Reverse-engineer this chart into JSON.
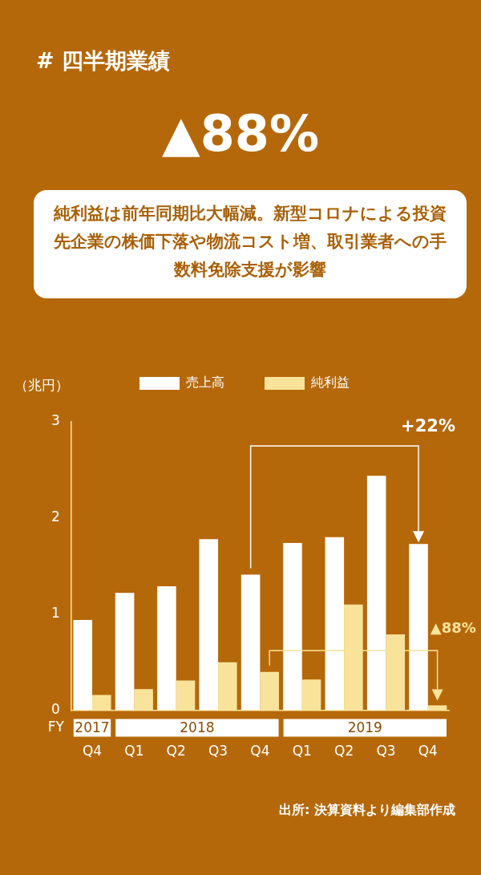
{
  "chart_data": {
    "type": "bar",
    "title": "# 四半期業績",
    "subtitle": "▲88%",
    "ylabel": "（兆円）",
    "categories": [
      "Q4",
      "Q1",
      "Q2",
      "Q3",
      "Q4",
      "Q1",
      "Q2",
      "Q3",
      "Q4"
    ],
    "series": [
      {
        "name": "売上高",
        "color": "#ffffff",
        "values": [
          0.94,
          1.22,
          1.29,
          1.78,
          1.41,
          1.74,
          1.8,
          2.44,
          1.73
        ]
      },
      {
        "name": "純利益",
        "color": "#f9e39a",
        "values": [
          0.16,
          0.22,
          0.31,
          0.5,
          0.4,
          0.32,
          1.1,
          0.79,
          0.05
        ]
      }
    ],
    "ylim": [
      0,
      3
    ],
    "yticks": [
      0,
      1,
      2,
      3
    ],
    "grid": false,
    "legend": "top",
    "annotations": [
      "純利益は前年同期比大幅減。新型コロナによる投資先企業の株価下落や物流コスト増、取引業者への手数料免除支援が影響",
      "+22%",
      "▲88%",
      "FY",
      "2017",
      "2018",
      "2019",
      "出所: 決算資料より編集部作成"
    ]
  }
}
